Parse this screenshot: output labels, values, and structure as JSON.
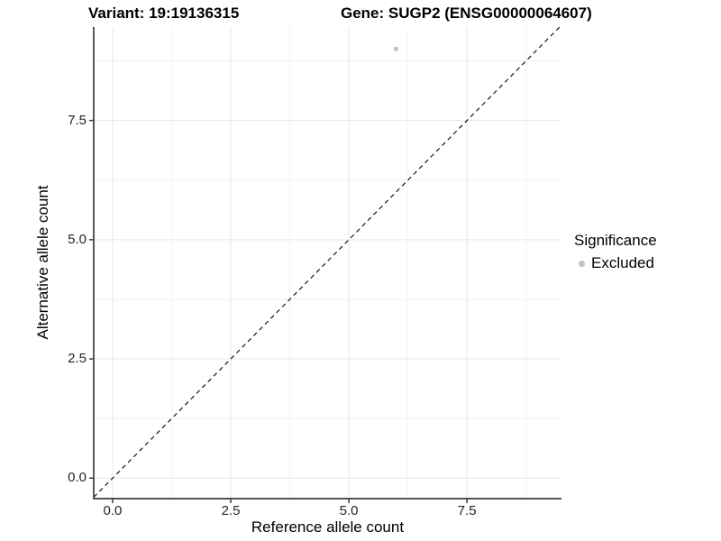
{
  "titles": {
    "variant": "Variant: 19:19136315",
    "gene": "Gene: SUGP2 (ENSG00000064607)"
  },
  "axes": {
    "x_label": "Reference allele count",
    "y_label": "Alternative allele count",
    "x_tick_labels": [
      "0.0",
      "2.5",
      "5.0",
      "7.5"
    ],
    "y_tick_labels": [
      "0.0",
      "2.5",
      "5.0",
      "7.5"
    ]
  },
  "legend": {
    "title": "Significance",
    "items": [
      {
        "label": "Excluded",
        "color": "#C2C2C2"
      }
    ]
  },
  "colors": {
    "grid_major": "#E7E7E7",
    "grid_minor": "#F2F2F2",
    "axis_line": "#3C3C3C",
    "abline": "#141414",
    "point": "#C2C2C2",
    "background": "#FFFFFF"
  },
  "chart_data": {
    "type": "scatter",
    "title": "Variant: 19:19136315  Gene: SUGP2 (ENSG00000064607)",
    "xlabel": "Reference allele count",
    "ylabel": "Alternative allele count",
    "xlim": [
      -0.4,
      9.5
    ],
    "ylim": [
      -0.43,
      9.46
    ],
    "x_major_ticks": [
      0,
      2.5,
      5,
      7.5
    ],
    "y_major_ticks": [
      0,
      2.5,
      5,
      7.5
    ],
    "x_minor_ticks": [
      1.25,
      3.75,
      6.25,
      8.75
    ],
    "y_minor_ticks": [
      1.25,
      3.75,
      6.25,
      8.75
    ],
    "grid": true,
    "legend_position": "right",
    "reference_line": {
      "kind": "abline",
      "slope": 1,
      "intercept": 0,
      "style": "dashed"
    },
    "series": [
      {
        "name": "Excluded",
        "color": "#C2C2C2",
        "points": [
          {
            "x": 6,
            "y": 9
          }
        ]
      }
    ]
  }
}
